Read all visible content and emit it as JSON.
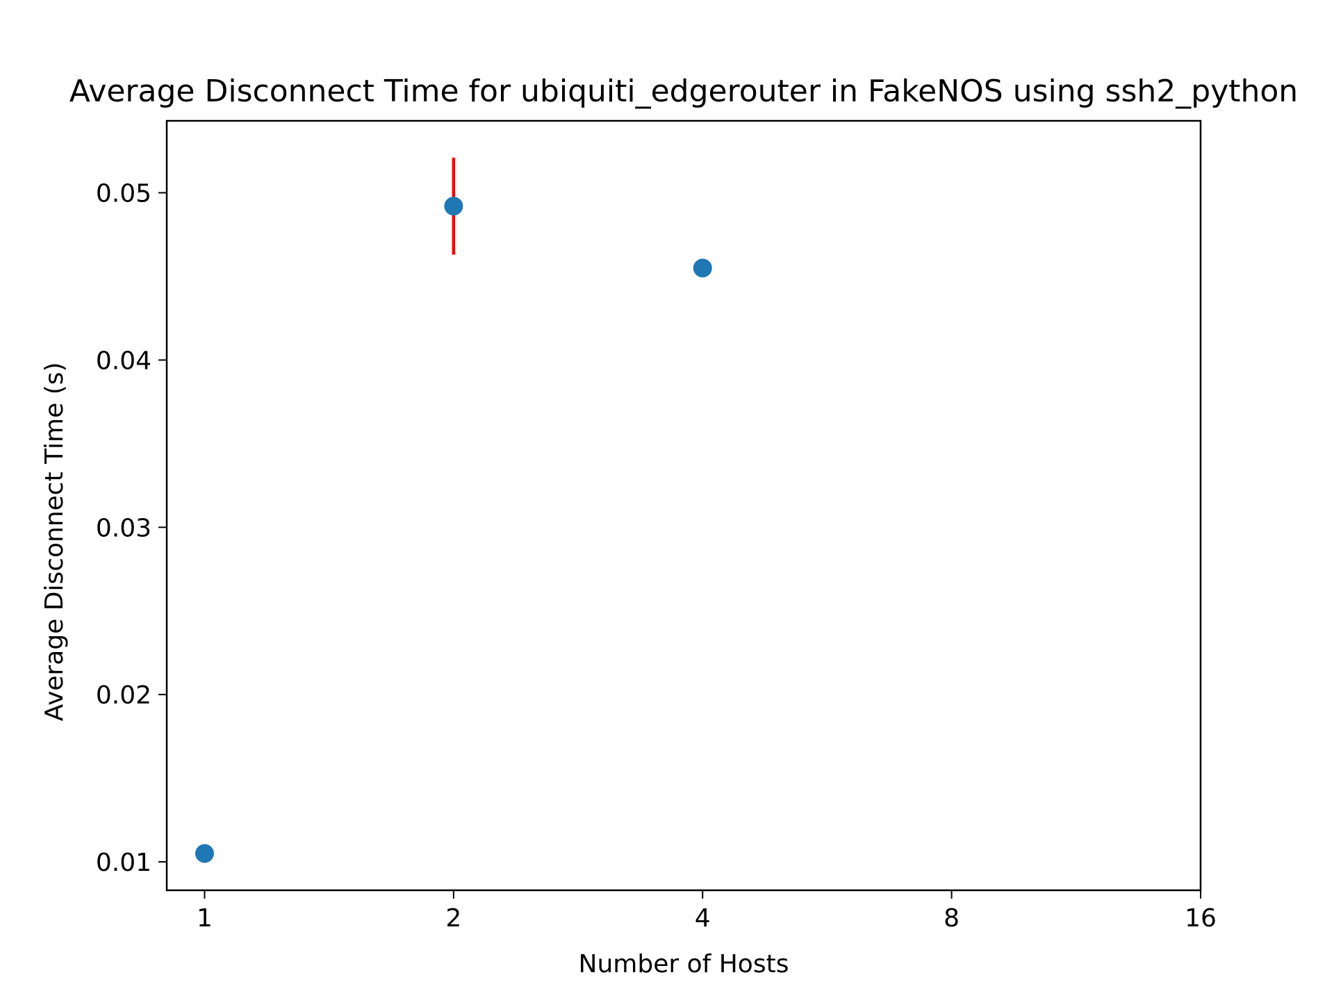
{
  "chart_data": {
    "type": "scatter",
    "title": "Average Disconnect Time for ubiquiti_edgerouter in FakeNOS using ssh2_python",
    "xlabel": "Number of Hosts",
    "ylabel": "Average Disconnect Time (s)",
    "x_scale": "log2",
    "xlim": [
      0.9,
      16
    ],
    "ylim": [
      0.0083,
      0.0543
    ],
    "x_ticks": [
      1,
      2,
      4,
      8,
      16
    ],
    "x_tick_labels": [
      "1",
      "2",
      "4",
      "8",
      "16"
    ],
    "y_ticks": [
      0.01,
      0.02,
      0.03,
      0.04,
      0.05
    ],
    "y_tick_labels": [
      "0.01",
      "0.02",
      "0.03",
      "0.04",
      "0.05"
    ],
    "grid": false,
    "series": [
      {
        "color": "#1f77b4",
        "error_color": "#ff0000",
        "points": [
          {
            "x": 1,
            "y": 0.0105,
            "err": 0.0
          },
          {
            "x": 2,
            "y": 0.0492,
            "err": 0.0029
          },
          {
            "x": 4,
            "y": 0.0455,
            "err": 0.0
          }
        ]
      }
    ]
  }
}
